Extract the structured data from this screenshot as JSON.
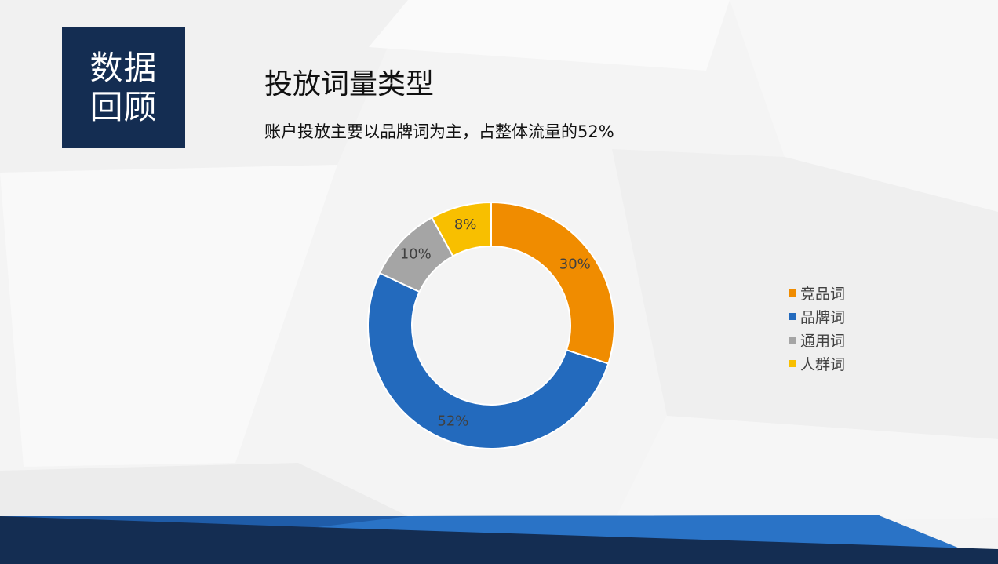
{
  "section": {
    "line1": "数据",
    "line2": "回顾"
  },
  "colors": {
    "navy": "#142d52",
    "blue": "#236abd",
    "orange": "#f08c00",
    "gray": "#a5a5a5",
    "yellow": "#f8bf00"
  },
  "chart_data": {
    "type": "pie",
    "title": "投放词量类型",
    "subtitle": "账户投放主要以品牌词为主，占整体流量的52%",
    "categories": [
      "竞品词",
      "品牌词",
      "通用词",
      "人群词"
    ],
    "values": [
      30,
      52,
      10,
      8
    ],
    "labels": [
      "30%",
      "52%",
      "10%",
      "8%"
    ],
    "colors": [
      "#f08c00",
      "#236abd",
      "#a5a5a5",
      "#f8bf00"
    ],
    "legend": "right"
  }
}
